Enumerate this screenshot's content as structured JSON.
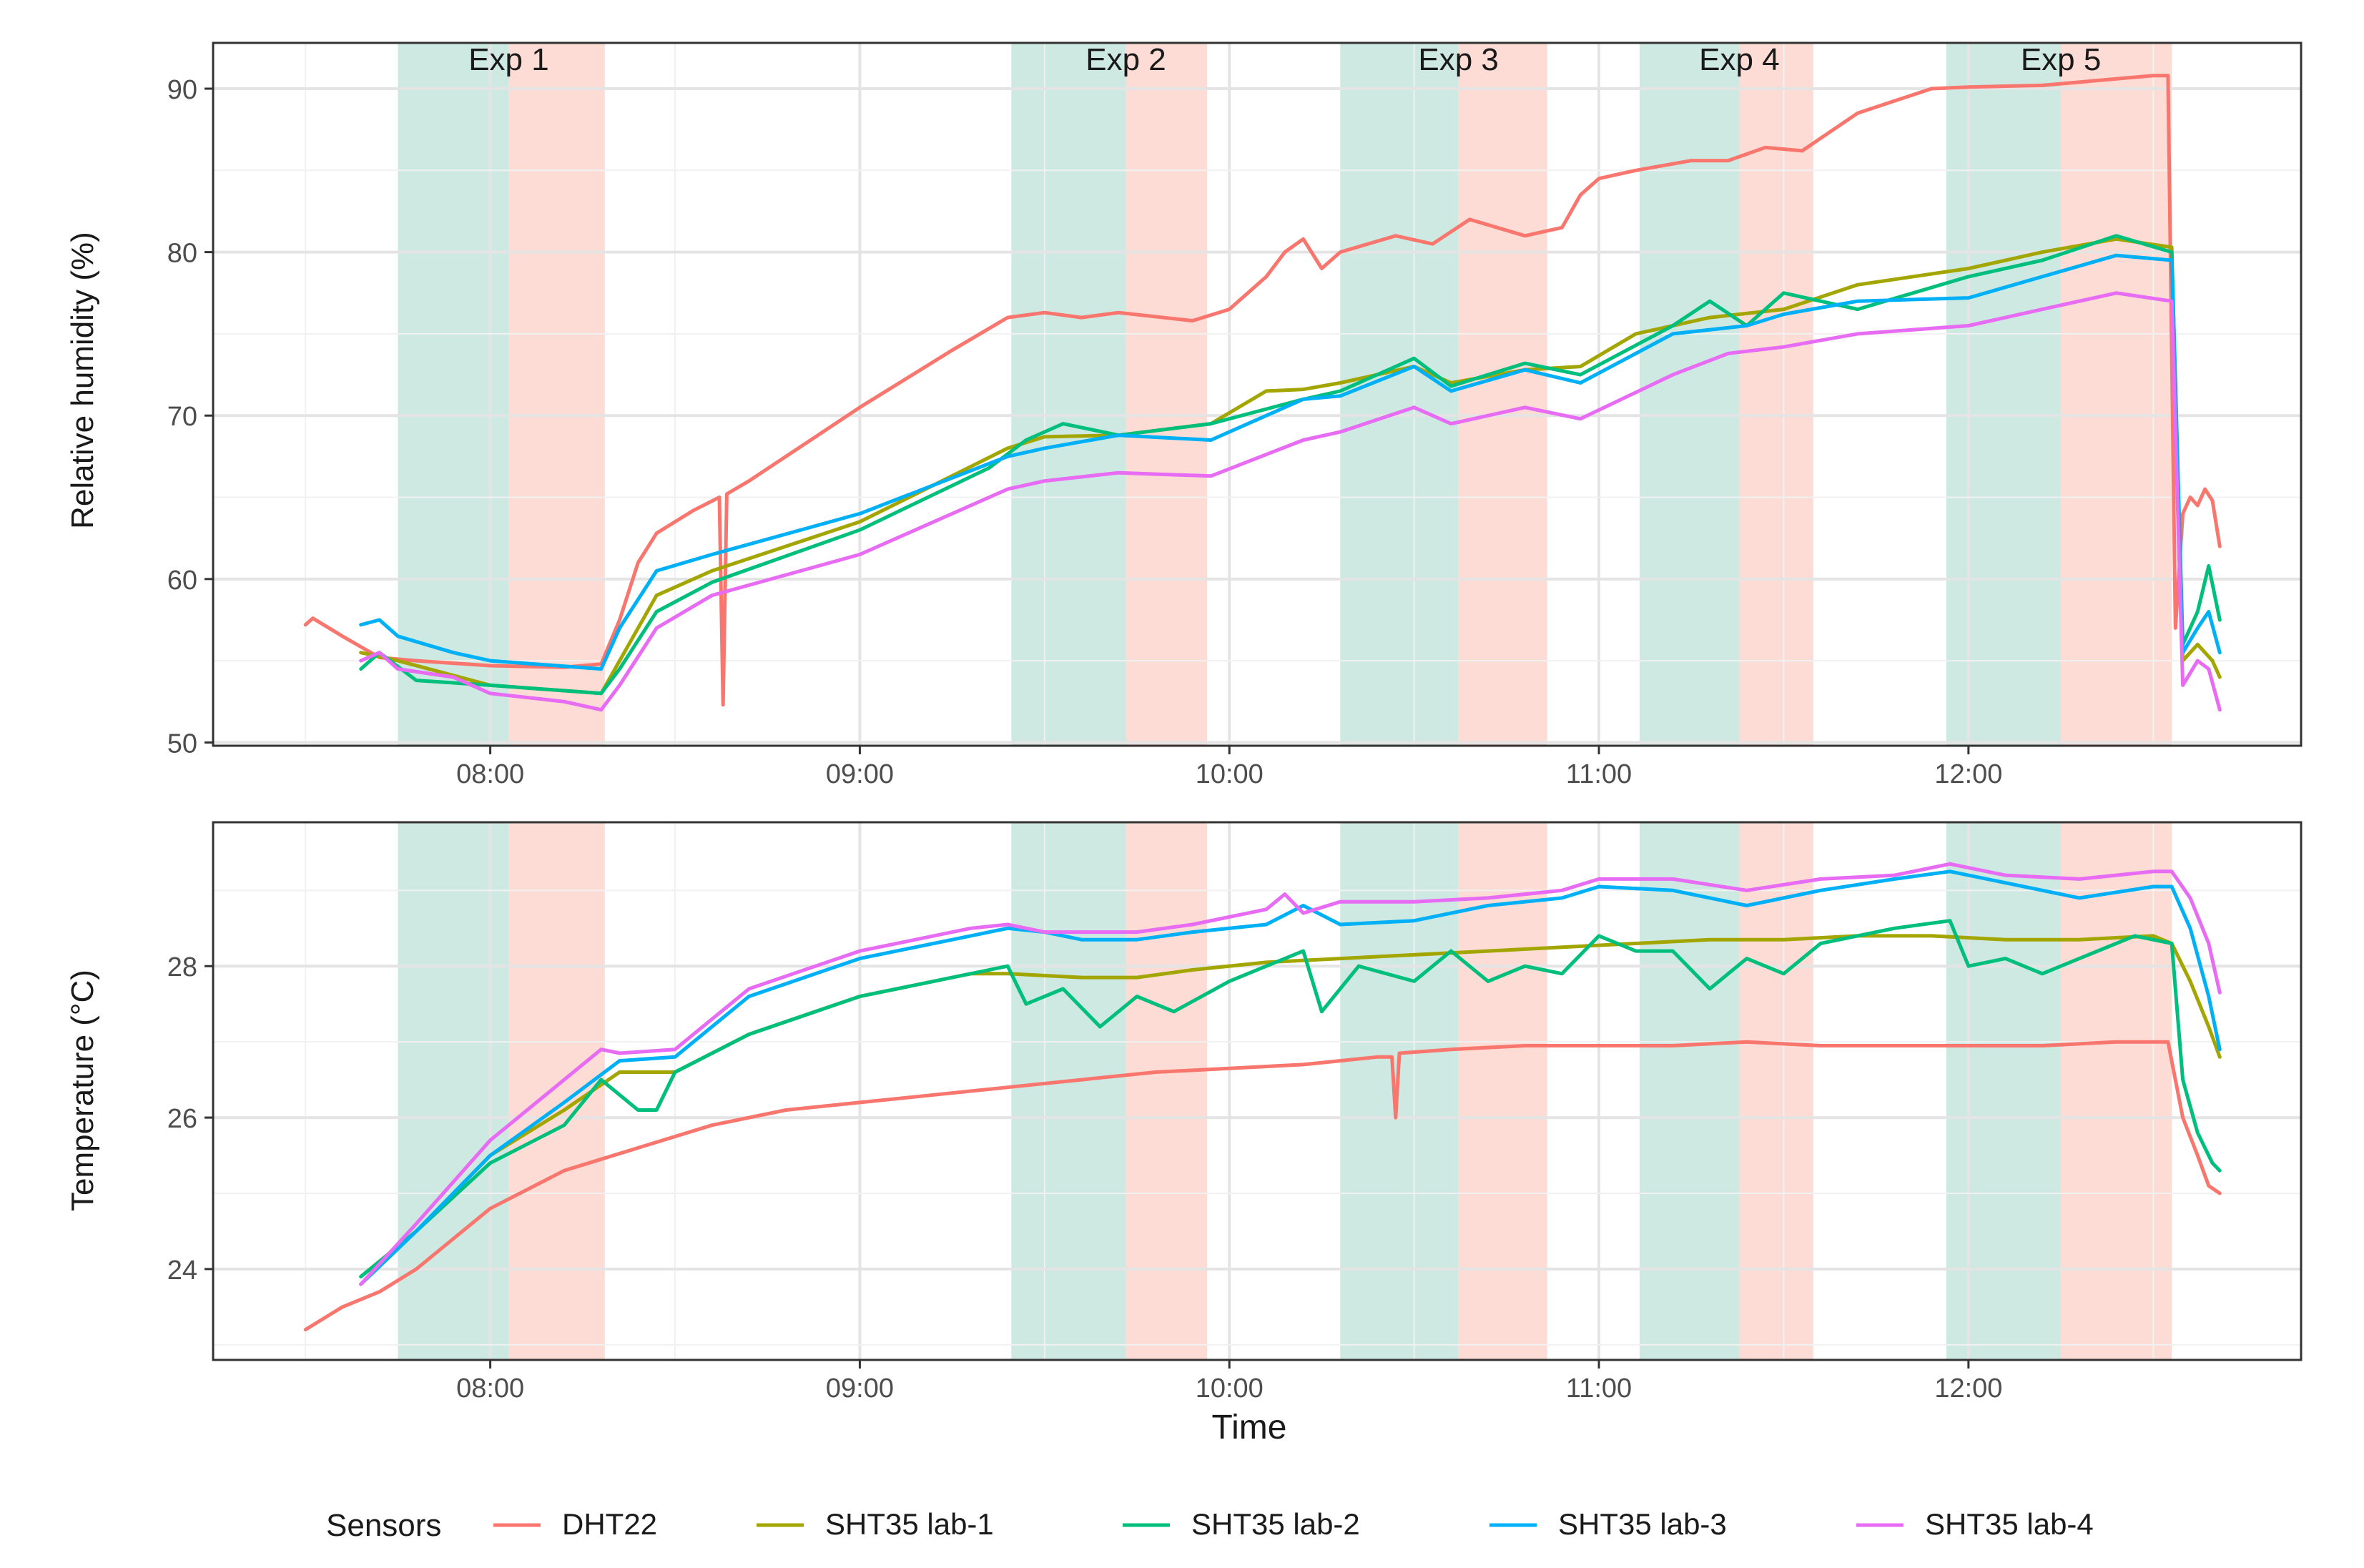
{
  "chart_data": [
    {
      "type": "line",
      "panel": "humidity",
      "title": "",
      "xlabel": "",
      "ylabel": "Relative humidity (%)",
      "ylim": [
        49.8,
        92.8
      ],
      "xlim": [
        7.25,
        12.9
      ],
      "y_ticks": [
        50,
        60,
        70,
        80,
        90
      ],
      "y_tick_labels": [
        "50",
        "60",
        "70",
        "80",
        "90"
      ],
      "x_ticks": [
        8,
        9,
        10,
        11,
        12
      ],
      "x_tick_labels": [
        "08:00",
        "09:00",
        "10:00",
        "11:00",
        "12:00"
      ],
      "grid": true,
      "experiments": [
        {
          "label": "Exp 1",
          "green": [
            7.75,
            8.05
          ],
          "red": [
            8.05,
            8.31
          ]
        },
        {
          "label": "Exp 2",
          "green": [
            9.41,
            9.72
          ],
          "red": [
            9.72,
            9.94
          ]
        },
        {
          "label": "Exp 3",
          "green": [
            10.3,
            10.62
          ],
          "red": [
            10.62,
            10.86
          ]
        },
        {
          "label": "Exp 4",
          "green": [
            11.11,
            11.38
          ],
          "red": [
            11.38,
            11.58
          ]
        },
        {
          "label": "Exp 5",
          "green": [
            11.94,
            12.25
          ],
          "red": [
            12.25,
            12.55
          ]
        }
      ],
      "series": [
        {
          "name": "DHT22",
          "x": [
            7.5,
            7.52,
            7.6,
            7.7,
            7.8,
            8.0,
            8.2,
            8.3,
            8.35,
            8.4,
            8.45,
            8.55,
            8.62,
            8.63,
            8.64,
            8.7,
            9.0,
            9.25,
            9.4,
            9.5,
            9.6,
            9.7,
            9.9,
            10.0,
            10.1,
            10.15,
            10.2,
            10.25,
            10.3,
            10.45,
            10.55,
            10.65,
            10.8,
            10.9,
            10.95,
            11.0,
            11.1,
            11.25,
            11.35,
            11.45,
            11.55,
            11.7,
            11.9,
            12.0,
            12.2,
            12.5,
            12.54,
            12.56,
            12.58,
            12.6,
            12.62,
            12.64,
            12.66,
            12.68
          ],
          "values": [
            57.2,
            57.6,
            56.5,
            55.2,
            55.0,
            54.7,
            54.6,
            54.8,
            57.5,
            61.0,
            62.8,
            64.2,
            65.0,
            52.3,
            65.2,
            66.0,
            70.5,
            74.0,
            76.0,
            76.3,
            76.0,
            76.3,
            75.8,
            76.5,
            78.5,
            80.0,
            80.8,
            79.0,
            80.0,
            81.0,
            80.5,
            82.0,
            81.0,
            81.5,
            83.5,
            84.5,
            85.0,
            85.6,
            85.6,
            86.4,
            86.2,
            88.5,
            90.0,
            90.1,
            90.2,
            90.8,
            90.8,
            57.0,
            64.0,
            65.0,
            64.5,
            65.5,
            64.8,
            62.0
          ]
        },
        {
          "name": "SHT35 lab-1",
          "x": [
            7.65,
            7.75,
            8.0,
            8.3,
            8.35,
            8.45,
            8.6,
            9.0,
            9.4,
            9.5,
            9.7,
            9.95,
            10.1,
            10.2,
            10.3,
            10.5,
            10.6,
            10.8,
            10.95,
            11.1,
            11.3,
            11.5,
            11.7,
            12.0,
            12.2,
            12.4,
            12.55,
            12.58,
            12.62,
            12.66,
            12.68
          ],
          "values": [
            55.5,
            55.0,
            53.5,
            53.0,
            55.0,
            59.0,
            60.5,
            63.5,
            68.0,
            68.7,
            68.8,
            69.5,
            71.5,
            71.6,
            72.0,
            73.0,
            72.0,
            72.8,
            73.0,
            75.0,
            76.0,
            76.5,
            78.0,
            79.0,
            80.0,
            80.8,
            80.3,
            55.0,
            56.0,
            55.0,
            54.0
          ]
        },
        {
          "name": "SHT35 lab-2",
          "x": [
            7.65,
            7.7,
            7.8,
            8.0,
            8.3,
            8.35,
            8.45,
            8.6,
            9.0,
            9.35,
            9.45,
            9.55,
            9.7,
            9.95,
            10.2,
            10.3,
            10.5,
            10.6,
            10.8,
            10.95,
            11.2,
            11.3,
            11.4,
            11.5,
            11.7,
            12.0,
            12.2,
            12.4,
            12.55,
            12.58,
            12.62,
            12.65,
            12.68
          ],
          "values": [
            54.5,
            55.5,
            53.8,
            53.5,
            53.0,
            54.5,
            58.0,
            59.8,
            63.0,
            66.8,
            68.5,
            69.5,
            68.8,
            69.5,
            71.0,
            71.5,
            73.5,
            71.8,
            73.2,
            72.5,
            75.5,
            77.0,
            75.5,
            77.5,
            76.5,
            78.5,
            79.5,
            81.0,
            80.0,
            56.0,
            58.0,
            60.8,
            57.5
          ]
        },
        {
          "name": "SHT35 lab-3",
          "x": [
            7.65,
            7.7,
            7.75,
            7.9,
            8.0,
            8.3,
            8.35,
            8.45,
            8.6,
            9.0,
            9.4,
            9.5,
            9.7,
            9.95,
            10.2,
            10.3,
            10.5,
            10.6,
            10.8,
            10.95,
            11.2,
            11.4,
            11.5,
            11.7,
            12.0,
            12.2,
            12.4,
            12.55,
            12.58,
            12.62,
            12.65,
            12.68
          ],
          "values": [
            57.2,
            57.5,
            56.5,
            55.5,
            55.0,
            54.5,
            57.0,
            60.5,
            61.5,
            64.0,
            67.5,
            68.0,
            68.8,
            68.5,
            71.0,
            71.2,
            73.0,
            71.5,
            72.8,
            72.0,
            75.0,
            75.5,
            76.2,
            77.0,
            77.2,
            78.5,
            79.8,
            79.5,
            55.5,
            57.0,
            58.0,
            55.5
          ]
        },
        {
          "name": "SHT35 lab-4",
          "x": [
            7.65,
            7.7,
            7.75,
            7.9,
            8.0,
            8.2,
            8.3,
            8.35,
            8.45,
            8.6,
            9.0,
            9.4,
            9.5,
            9.7,
            9.95,
            10.2,
            10.3,
            10.5,
            10.6,
            10.8,
            10.95,
            11.2,
            11.35,
            11.5,
            11.7,
            12.0,
            12.2,
            12.4,
            12.55,
            12.58,
            12.62,
            12.65,
            12.68
          ],
          "values": [
            55.0,
            55.5,
            54.5,
            54.0,
            53.0,
            52.5,
            52.0,
            53.5,
            57.0,
            59.0,
            61.5,
            65.5,
            66.0,
            66.5,
            66.3,
            68.5,
            69.0,
            70.5,
            69.5,
            70.5,
            69.8,
            72.5,
            73.8,
            74.2,
            75.0,
            75.5,
            76.5,
            77.5,
            77.0,
            53.5,
            55.0,
            54.5,
            52.0
          ]
        }
      ]
    },
    {
      "type": "line",
      "panel": "temperature",
      "title": "",
      "xlabel": "Time",
      "ylabel": "Temperature (°C)",
      "ylim": [
        22.8,
        29.9
      ],
      "xlim": [
        7.25,
        12.9
      ],
      "y_ticks": [
        24,
        26,
        28
      ],
      "y_tick_labels": [
        "24",
        "26",
        "28"
      ],
      "x_ticks": [
        8,
        9,
        10,
        11,
        12
      ],
      "x_tick_labels": [
        "08:00",
        "09:00",
        "10:00",
        "11:00",
        "12:00"
      ],
      "grid": true,
      "experiments": [
        {
          "label": "",
          "green": [
            7.75,
            8.05
          ],
          "red": [
            8.05,
            8.31
          ]
        },
        {
          "label": "",
          "green": [
            9.41,
            9.72
          ],
          "red": [
            9.72,
            9.94
          ]
        },
        {
          "label": "",
          "green": [
            10.3,
            10.62
          ],
          "red": [
            10.62,
            10.86
          ]
        },
        {
          "label": "",
          "green": [
            11.11,
            11.38
          ],
          "red": [
            11.38,
            11.58
          ]
        },
        {
          "label": "",
          "green": [
            11.94,
            12.25
          ],
          "red": [
            12.25,
            12.55
          ]
        }
      ],
      "series": [
        {
          "name": "DHT22",
          "x": [
            7.5,
            7.6,
            7.7,
            7.8,
            8.0,
            8.2,
            8.4,
            8.6,
            8.8,
            9.0,
            9.2,
            9.4,
            9.6,
            9.8,
            10.0,
            10.2,
            10.3,
            10.4,
            10.44,
            10.45,
            10.46,
            10.6,
            10.8,
            11.0,
            11.2,
            11.4,
            11.6,
            11.8,
            12.0,
            12.2,
            12.4,
            12.54,
            12.58,
            12.62,
            12.65,
            12.68
          ],
          "values": [
            23.2,
            23.5,
            23.7,
            24.0,
            24.8,
            25.3,
            25.6,
            25.9,
            26.1,
            26.2,
            26.3,
            26.4,
            26.5,
            26.6,
            26.65,
            26.7,
            26.75,
            26.8,
            26.8,
            26.0,
            26.85,
            26.9,
            26.95,
            26.95,
            26.95,
            27.0,
            26.95,
            26.95,
            26.95,
            26.95,
            27.0,
            27.0,
            26.0,
            25.5,
            25.1,
            25.0
          ]
        },
        {
          "name": "SHT35 lab-1",
          "x": [
            7.65,
            7.8,
            8.0,
            8.2,
            8.35,
            8.5,
            8.7,
            9.0,
            9.3,
            9.4,
            9.6,
            9.75,
            9.9,
            10.1,
            10.3,
            10.5,
            10.7,
            10.9,
            11.1,
            11.3,
            11.5,
            11.7,
            11.9,
            12.1,
            12.3,
            12.5,
            12.55,
            12.6,
            12.65,
            12.68
          ],
          "values": [
            23.9,
            24.5,
            25.5,
            26.1,
            26.6,
            26.6,
            27.1,
            27.6,
            27.9,
            27.9,
            27.85,
            27.85,
            27.95,
            28.05,
            28.1,
            28.15,
            28.2,
            28.25,
            28.3,
            28.35,
            28.35,
            28.4,
            28.4,
            28.35,
            28.35,
            28.4,
            28.3,
            27.8,
            27.2,
            26.8
          ]
        },
        {
          "name": "SHT35 lab-2",
          "x": [
            7.65,
            7.8,
            8.0,
            8.2,
            8.3,
            8.4,
            8.45,
            8.5,
            8.7,
            9.0,
            9.3,
            9.4,
            9.45,
            9.55,
            9.65,
            9.75,
            9.85,
            10.0,
            10.1,
            10.2,
            10.25,
            10.35,
            10.5,
            10.6,
            10.7,
            10.8,
            10.9,
            11.0,
            11.1,
            11.2,
            11.3,
            11.4,
            11.5,
            11.6,
            11.8,
            11.95,
            12.0,
            12.1,
            12.2,
            12.3,
            12.45,
            12.55,
            12.58,
            12.62,
            12.66,
            12.68
          ],
          "values": [
            23.9,
            24.5,
            25.4,
            25.9,
            26.5,
            26.1,
            26.1,
            26.6,
            27.1,
            27.6,
            27.9,
            28.0,
            27.5,
            27.7,
            27.2,
            27.6,
            27.4,
            27.8,
            28.0,
            28.2,
            27.4,
            28.0,
            27.8,
            28.2,
            27.8,
            28.0,
            27.9,
            28.4,
            28.2,
            28.2,
            27.7,
            28.1,
            27.9,
            28.3,
            28.5,
            28.6,
            28.0,
            28.1,
            27.9,
            28.1,
            28.4,
            28.3,
            26.5,
            25.8,
            25.4,
            25.3
          ]
        },
        {
          "name": "SHT35 lab-3",
          "x": [
            7.65,
            7.8,
            8.0,
            8.2,
            8.35,
            8.5,
            8.7,
            9.0,
            9.3,
            9.4,
            9.5,
            9.6,
            9.75,
            9.9,
            10.1,
            10.2,
            10.3,
            10.5,
            10.7,
            10.9,
            11.0,
            11.2,
            11.4,
            11.6,
            11.8,
            11.95,
            12.1,
            12.3,
            12.5,
            12.55,
            12.6,
            12.65,
            12.68
          ],
          "values": [
            23.8,
            24.5,
            25.5,
            26.2,
            26.75,
            26.8,
            27.6,
            28.1,
            28.4,
            28.5,
            28.45,
            28.35,
            28.35,
            28.45,
            28.55,
            28.8,
            28.55,
            28.6,
            28.8,
            28.9,
            29.05,
            29.0,
            28.8,
            29.0,
            29.15,
            29.25,
            29.1,
            28.9,
            29.05,
            29.05,
            28.5,
            27.6,
            26.9
          ]
        },
        {
          "name": "SHT35 lab-4",
          "x": [
            7.65,
            7.8,
            8.0,
            8.2,
            8.3,
            8.35,
            8.5,
            8.7,
            9.0,
            9.3,
            9.4,
            9.5,
            9.6,
            9.75,
            9.9,
            10.1,
            10.15,
            10.2,
            10.3,
            10.5,
            10.7,
            10.9,
            11.0,
            11.2,
            11.4,
            11.6,
            11.8,
            11.95,
            12.1,
            12.3,
            12.5,
            12.55,
            12.6,
            12.65,
            12.68
          ],
          "values": [
            23.8,
            24.6,
            25.7,
            26.5,
            26.9,
            26.85,
            26.9,
            27.7,
            28.2,
            28.5,
            28.55,
            28.45,
            28.45,
            28.45,
            28.55,
            28.75,
            28.95,
            28.7,
            28.85,
            28.85,
            28.9,
            29.0,
            29.15,
            29.15,
            29.0,
            29.15,
            29.2,
            29.35,
            29.2,
            29.15,
            29.25,
            29.25,
            28.9,
            28.3,
            27.65
          ]
        }
      ]
    }
  ],
  "legend": {
    "title": "Sensors",
    "placement": "bottom",
    "items": [
      {
        "name": "DHT22",
        "color": "#F8766D"
      },
      {
        "name": "SHT35 lab-1",
        "color": "#A3A500"
      },
      {
        "name": "SHT35 lab-2",
        "color": "#00BF7D"
      },
      {
        "name": "SHT35 lab-3",
        "color": "#00B0F6"
      },
      {
        "name": "SHT35 lab-4",
        "color": "#E76BF3"
      }
    ]
  },
  "colors": {
    "series": [
      "#F8766D",
      "#A3A500",
      "#00BF7D",
      "#00B0F6",
      "#E76BF3"
    ],
    "band_green": "#CDE9E2",
    "band_red": "#FCDCD4",
    "grid_major": "#E4E4E4",
    "grid_minor": "#F1F1F1",
    "panel_border": "#333333",
    "text": "#1A1A1A",
    "tick_text": "#4D4D4D"
  }
}
